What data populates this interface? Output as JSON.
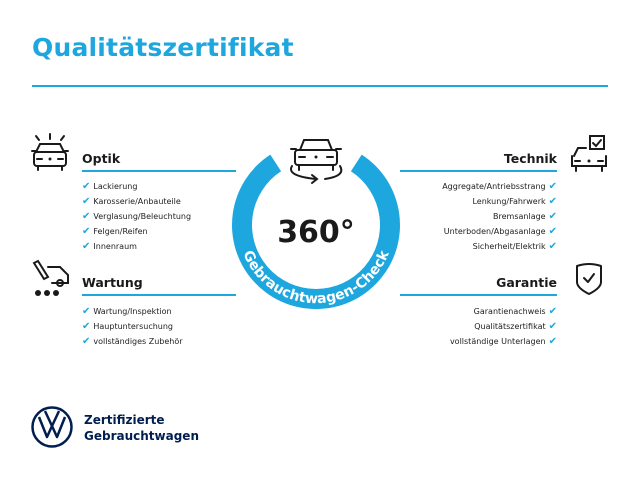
{
  "title": "Qualitätszertifikat",
  "colors": {
    "accent": "#1ea7df",
    "brand": "#001e50",
    "text": "#1a1a1a"
  },
  "badge": {
    "main_text": "360°",
    "arc_text": "Gebrauchtwagen-Check",
    "icon": "car-rotate-icon"
  },
  "sections": {
    "optik": {
      "label": "Optik",
      "icon": "car-lights-icon",
      "items": [
        "Lackierung",
        "Karosserie/Anbauteile",
        "Verglasung/Beleuchtung",
        "Felgen/Reifen",
        "Innenraum"
      ]
    },
    "wartung": {
      "label": "Wartung",
      "icon": "service-truck-icon",
      "items": [
        "Wartung/Inspektion",
        "Hauptuntersuchung",
        "vollständiges Zubehör"
      ]
    },
    "technik": {
      "label": "Technik",
      "icon": "car-checkbox-icon",
      "items": [
        "Aggregate/Antriebsstrang",
        "Lenkung/Fahrwerk",
        "Bremsanlage",
        "Unterboden/Abgasanlage",
        "Sicherheit/Elektrik"
      ]
    },
    "garantie": {
      "label": "Garantie",
      "icon": "shield-check-icon",
      "items": [
        "Garantienachweis",
        "Qualitätszertifikat",
        "vollständige Unterlagen"
      ]
    }
  },
  "footer": {
    "line1": "Zertifizierte",
    "line2": "Gebrauchtwagen",
    "logo": "vw-logo"
  }
}
